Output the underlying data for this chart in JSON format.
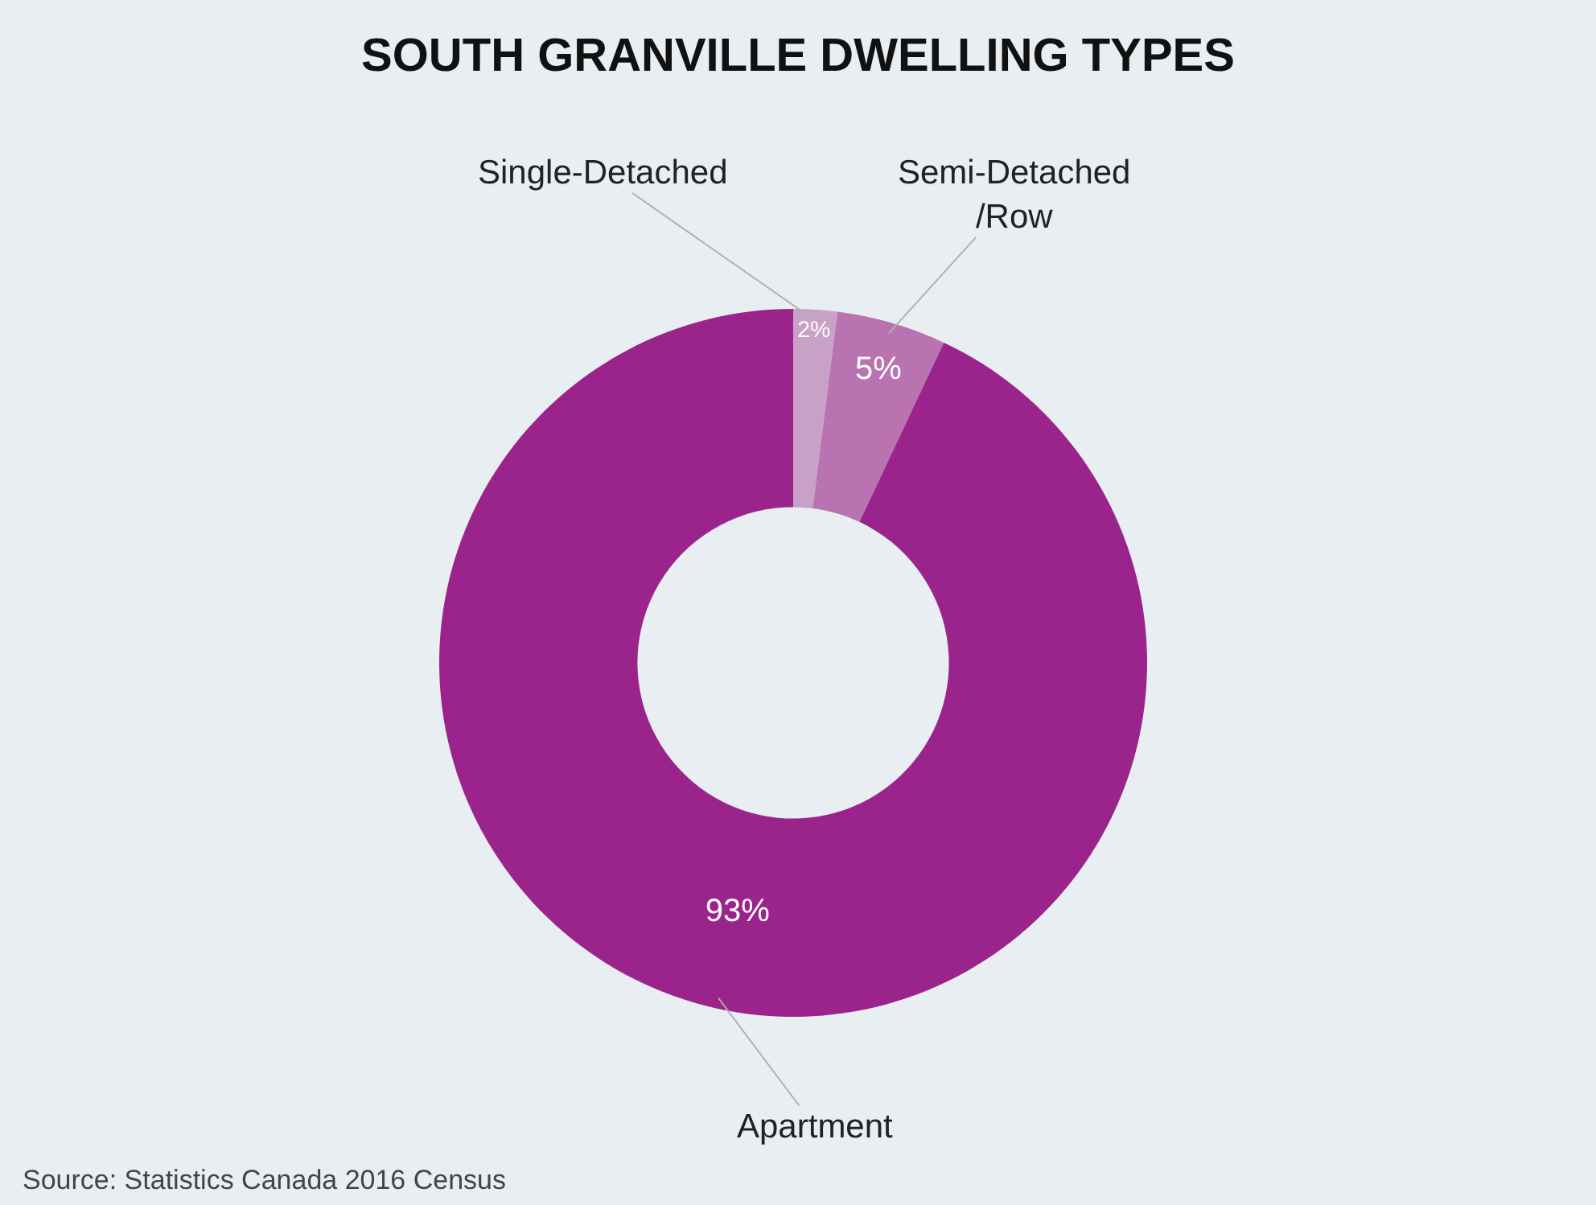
{
  "chart_data": {
    "type": "donut",
    "title": "SOUTH GRANVILLE DWELLING TYPES",
    "categories": [
      "Single-Detached",
      "Semi-Detached\n/Row",
      "Apartment"
    ],
    "values": [
      2,
      5,
      93
    ],
    "colors": [
      "#c9a0c6",
      "#b873b0",
      "#9b248c"
    ],
    "value_labels": [
      "2%",
      "5%",
      "93%"
    ],
    "legend": false,
    "annotations": [
      "Source: Statistics Canada 2016 Census"
    ]
  }
}
